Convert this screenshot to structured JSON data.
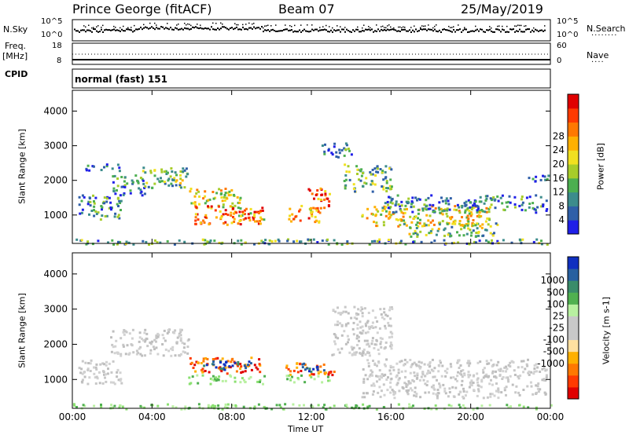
{
  "header": {
    "station": "Prince George (fitACF)",
    "beam": "Beam 07",
    "date": "25/May/2019"
  },
  "left_labels": {
    "nsky": "N.Sky",
    "freq_line1": "Freq.",
    "freq_line2": "[MHz]",
    "cpid": "CPID"
  },
  "right_labels": {
    "nsearch": "N.Search",
    "nave": "Nave"
  },
  "cpid_value": "normal (fast) 151",
  "noise_panel": {
    "left_ticks": [
      "10^5",
      "10^0"
    ],
    "right_ticks": [
      "10^5",
      "10^0"
    ]
  },
  "freq_panel": {
    "left_ticks": [
      "18",
      "8"
    ],
    "right_ticks": [
      "60",
      "0"
    ]
  },
  "chart_data": [
    {
      "type": "heatmap",
      "title": "",
      "xlabel": "",
      "ylabel": "Slant Range [km]",
      "x_ticks": [
        "00:00",
        "04:00",
        "08:00",
        "12:00",
        "16:00",
        "20:00",
        "00:00"
      ],
      "y_ticks": [
        "1000",
        "2000",
        "3000",
        "4000"
      ],
      "xlim_hours": [
        0,
        24
      ],
      "ylim_km": [
        180,
        4600
      ],
      "colorbar": {
        "label": "Power [dB]",
        "ticks": [
          "4",
          "8",
          "12",
          "16",
          "20",
          "24",
          "28"
        ],
        "colors": [
          "#1f1fe8",
          "#2f5fa8",
          "#3c8c8c",
          "#4caf50",
          "#a7cc2a",
          "#f0e020",
          "#ffb000",
          "#ff7800",
          "#ff3a00",
          "#e00000"
        ]
      },
      "regions": [
        {
          "t0": 0.3,
          "t1": 2.5,
          "r0": 900,
          "r1": 1600,
          "level": 0.25
        },
        {
          "t0": 0.6,
          "t1": 2.4,
          "r0": 2300,
          "r1": 2500,
          "level": 0.15
        },
        {
          "t0": 1.8,
          "t1": 3.6,
          "r0": 1600,
          "r1": 2200,
          "level": 0.2
        },
        {
          "t0": 3.5,
          "t1": 5.8,
          "r0": 1800,
          "r1": 2400,
          "level": 0.35
        },
        {
          "t0": 5.8,
          "t1": 8.4,
          "r0": 1200,
          "r1": 1800,
          "level": 0.55
        },
        {
          "t0": 6.1,
          "t1": 9.6,
          "r0": 750,
          "r1": 1300,
          "level": 0.8
        },
        {
          "t0": 8.0,
          "t1": 9.6,
          "r0": 850,
          "r1": 1100,
          "level": 0.6
        },
        {
          "t0": 10.8,
          "t1": 12.4,
          "r0": 800,
          "r1": 1300,
          "level": 0.7
        },
        {
          "t0": 11.8,
          "t1": 13.0,
          "r0": 1200,
          "r1": 1800,
          "level": 0.8
        },
        {
          "t0": 12.4,
          "t1": 14.0,
          "r0": 2700,
          "r1": 3100,
          "level": 0.2
        },
        {
          "t0": 13.6,
          "t1": 16.0,
          "r0": 1700,
          "r1": 2500,
          "level": 0.35
        },
        {
          "t0": 14.5,
          "t1": 21.0,
          "r0": 700,
          "r1": 1300,
          "level": 0.55
        },
        {
          "t0": 16.5,
          "t1": 21.5,
          "r0": 400,
          "r1": 800,
          "level": 0.4
        },
        {
          "t0": 15.5,
          "t1": 23.8,
          "r0": 1100,
          "r1": 1600,
          "level": 0.2
        },
        {
          "t0": 22.6,
          "t1": 24.0,
          "r0": 2000,
          "r1": 2200,
          "level": 0.15
        },
        {
          "t0": 4.0,
          "t1": 6.0,
          "r0": 1950,
          "r1": 2050,
          "level": 0.45
        },
        {
          "t0": 0.0,
          "t1": 24.0,
          "r0": 180,
          "r1": 330,
          "level": 0.3
        }
      ]
    },
    {
      "type": "heatmap",
      "title": "",
      "xlabel": "Time UT",
      "ylabel": "Slant Range [km]",
      "x_ticks": [
        "00:00",
        "04:00",
        "08:00",
        "12:00",
        "16:00",
        "20:00",
        "00:00"
      ],
      "y_ticks": [
        "1000",
        "2000",
        "3000",
        "4000"
      ],
      "xlim_hours": [
        0,
        24
      ],
      "ylim_km": [
        180,
        4600
      ],
      "colorbar": {
        "label": "Velocity [m s-1]",
        "ticks": [
          "1000",
          "500",
          "100",
          "25",
          "-25",
          "-100",
          "-500",
          "-1000"
        ],
        "colors": [
          "#1030c0",
          "#2860a0",
          "#3a8c6a",
          "#50b050",
          "#b8f0a0",
          "#c8c8c8",
          "#c8c8c8",
          "#ffe0a0",
          "#ffb000",
          "#ff7800",
          "#ff3a00",
          "#e00000"
        ]
      },
      "regions": [
        {
          "t0": 0.3,
          "t1": 2.5,
          "r0": 900,
          "r1": 1600,
          "cat": "gray"
        },
        {
          "t0": 1.8,
          "t1": 5.8,
          "r0": 1700,
          "r1": 2450,
          "cat": "gray"
        },
        {
          "t0": 5.8,
          "t1": 9.6,
          "r0": 1200,
          "r1": 1650,
          "cat": "orange"
        },
        {
          "t0": 6.5,
          "t1": 9.2,
          "r0": 1300,
          "r1": 1550,
          "cat": "blue"
        },
        {
          "t0": 5.8,
          "t1": 9.6,
          "r0": 900,
          "r1": 1150,
          "cat": "green"
        },
        {
          "t0": 10.6,
          "t1": 13.1,
          "r0": 1150,
          "r1": 1500,
          "cat": "orange"
        },
        {
          "t0": 11.5,
          "t1": 13.0,
          "r0": 1250,
          "r1": 1500,
          "cat": "blue"
        },
        {
          "t0": 10.6,
          "t1": 13.0,
          "r0": 950,
          "r1": 1150,
          "cat": "green"
        },
        {
          "t0": 13.0,
          "t1": 16.0,
          "r0": 1700,
          "r1": 3100,
          "cat": "gray"
        },
        {
          "t0": 14.5,
          "t1": 23.8,
          "r0": 500,
          "r1": 1600,
          "cat": "gray"
        },
        {
          "t0": 0.0,
          "t1": 24.0,
          "r0": 180,
          "r1": 330,
          "cat": "green"
        }
      ]
    }
  ]
}
